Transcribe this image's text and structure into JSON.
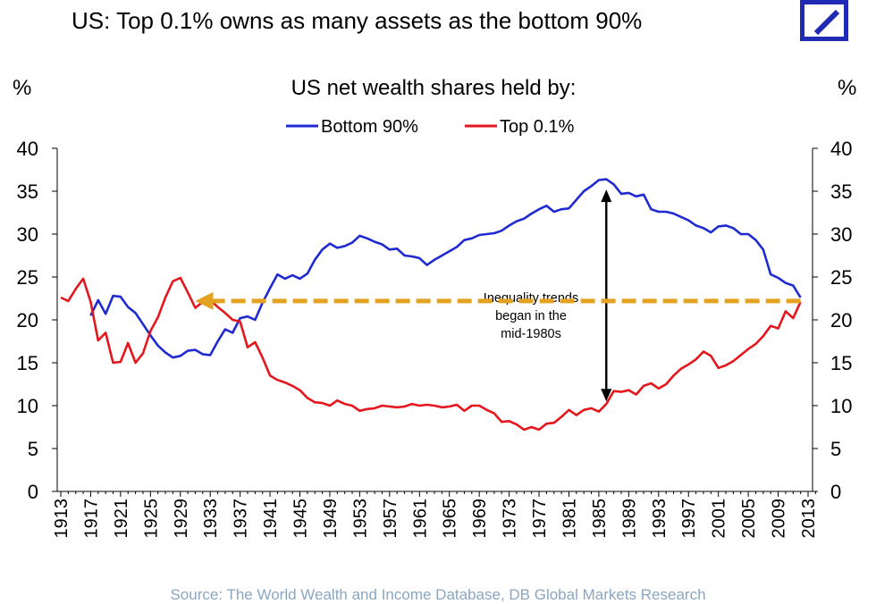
{
  "headline": "US: Top 0.1% owns as many assets as the bottom 90%",
  "logo_icon": "deutsche-bank-logo-icon",
  "source": "Source: The World Wealth and Income Database, DB Global Markets Research",
  "chart_data": {
    "type": "line",
    "title": "US net wealth shares held by:",
    "ylabel_left": "%",
    "ylabel_right": "%",
    "ylim": [
      0,
      40
    ],
    "yticks": [
      0,
      5,
      10,
      15,
      20,
      25,
      30,
      35,
      40
    ],
    "xlim": [
      1913,
      2014
    ],
    "xticks": [
      "1913",
      "1917",
      "1921",
      "1925",
      "1929",
      "1933",
      "1937",
      "1941",
      "1945",
      "1949",
      "1953",
      "1957",
      "1961",
      "1965",
      "1969",
      "1973",
      "1977",
      "1981",
      "1985",
      "1989",
      "1993",
      "1997",
      "2001",
      "2005",
      "2009",
      "2013"
    ],
    "legend_position": "top-center",
    "grid": false,
    "series": [
      {
        "name": "Bottom 90%",
        "color": "#1f2bd0",
        "x": [
          1917,
          1918,
          1919,
          1920,
          1921,
          1922,
          1923,
          1924,
          1925,
          1926,
          1927,
          1928,
          1929,
          1930,
          1931,
          1932,
          1933,
          1934,
          1935,
          1936,
          1937,
          1938,
          1939,
          1940,
          1941,
          1942,
          1943,
          1944,
          1945,
          1946,
          1947,
          1948,
          1949,
          1950,
          1951,
          1952,
          1953,
          1954,
          1955,
          1956,
          1957,
          1958,
          1959,
          1960,
          1961,
          1962,
          1963,
          1964,
          1965,
          1966,
          1967,
          1968,
          1969,
          1970,
          1971,
          1972,
          1973,
          1974,
          1975,
          1976,
          1977,
          1978,
          1979,
          1980,
          1981,
          1982,
          1983,
          1984,
          1985,
          1986,
          1987,
          1988,
          1989,
          1990,
          1991,
          1992,
          1993,
          1994,
          1995,
          1996,
          1997,
          1998,
          1999,
          2000,
          2001,
          2002,
          2003,
          2004,
          2005,
          2006,
          2007,
          2008,
          2009,
          2010,
          2011,
          2012
        ],
        "values": [
          20.5,
          22.3,
          20.7,
          22.8,
          22.7,
          21.5,
          20.8,
          19.5,
          18.2,
          17.0,
          16.2,
          15.6,
          15.8,
          16.4,
          16.5,
          16.0,
          15.9,
          17.5,
          18.9,
          18.5,
          20.2,
          20.4,
          20.0,
          22.0,
          23.7,
          25.3,
          24.8,
          25.2,
          24.8,
          25.4,
          27.0,
          28.2,
          28.9,
          28.4,
          28.6,
          29.0,
          29.8,
          29.5,
          29.1,
          28.8,
          28.2,
          28.3,
          27.5,
          27.4,
          27.2,
          26.4,
          27.0,
          27.5,
          28.0,
          28.5,
          29.3,
          29.5,
          29.9,
          30.0,
          30.1,
          30.4,
          31.0,
          31.5,
          31.8,
          32.4,
          32.9,
          33.3,
          32.6,
          32.9,
          33.0,
          34.0,
          35.0,
          35.6,
          36.3,
          36.4,
          35.8,
          34.7,
          34.8,
          34.4,
          34.6,
          32.9,
          32.6,
          32.6,
          32.4,
          32.0,
          31.6,
          31.0,
          30.7,
          30.2,
          30.9,
          31.0,
          30.7,
          30.0,
          30.0,
          29.3,
          28.2,
          25.3,
          24.9,
          24.3,
          24.0,
          22.6
        ]
      },
      {
        "name": "Top 0.1%",
        "color": "#e3171d",
        "x": [
          1913,
          1914,
          1915,
          1916,
          1917,
          1918,
          1919,
          1920,
          1921,
          1922,
          1923,
          1924,
          1925,
          1926,
          1927,
          1928,
          1929,
          1930,
          1931,
          1932,
          1933,
          1934,
          1935,
          1936,
          1937,
          1938,
          1939,
          1940,
          1941,
          1942,
          1943,
          1944,
          1945,
          1946,
          1947,
          1948,
          1949,
          1950,
          1951,
          1952,
          1953,
          1954,
          1955,
          1956,
          1957,
          1958,
          1959,
          1960,
          1961,
          1962,
          1963,
          1964,
          1965,
          1966,
          1967,
          1968,
          1969,
          1970,
          1971,
          1972,
          1973,
          1974,
          1975,
          1976,
          1977,
          1978,
          1979,
          1980,
          1981,
          1982,
          1983,
          1984,
          1985,
          1986,
          1987,
          1988,
          1989,
          1990,
          1991,
          1992,
          1993,
          1994,
          1995,
          1996,
          1997,
          1998,
          1999,
          2000,
          2001,
          2002,
          2003,
          2004,
          2005,
          2006,
          2007,
          2008,
          2009,
          2010,
          2011,
          2012
        ],
        "values": [
          22.6,
          22.2,
          23.6,
          24.8,
          22.1,
          17.6,
          18.5,
          15.0,
          15.1,
          17.3,
          15.0,
          16.1,
          18.7,
          20.3,
          22.6,
          24.5,
          24.9,
          23.2,
          21.4,
          22.1,
          22.3,
          21.5,
          20.8,
          20.0,
          19.8,
          16.8,
          17.4,
          15.6,
          13.5,
          13.0,
          12.7,
          12.3,
          11.8,
          10.9,
          10.4,
          10.3,
          10.0,
          10.6,
          10.2,
          10.0,
          9.4,
          9.6,
          9.7,
          10.0,
          9.9,
          9.8,
          9.9,
          10.2,
          10.0,
          10.1,
          10.0,
          9.8,
          9.9,
          10.1,
          9.4,
          10.0,
          10.0,
          9.5,
          9.1,
          8.1,
          8.2,
          7.8,
          7.2,
          7.5,
          7.2,
          7.9,
          8.0,
          8.7,
          9.5,
          8.9,
          9.5,
          9.7,
          9.3,
          10.2,
          11.7,
          11.6,
          11.8,
          11.3,
          12.3,
          12.6,
          12.0,
          12.5,
          13.5,
          14.3,
          14.8,
          15.4,
          16.3,
          15.8,
          14.4,
          14.7,
          15.2,
          15.9,
          16.6,
          17.2,
          18.1,
          19.3,
          19.0,
          21.0,
          20.2,
          22.1
        ]
      }
    ],
    "annotations": [
      {
        "text_lines": [
          "Inequality trends",
          "began in the",
          "mid-1980s"
        ],
        "x": 1986,
        "y": 20.5
      },
      {
        "type": "double-arrow",
        "x": 1986,
        "y_from": 10.5,
        "y_to": 35.2,
        "color": "#000000"
      },
      {
        "type": "dashed-arrow",
        "y": 22.2,
        "x_from": 2012,
        "x_to": 1931,
        "color": "#e3a221"
      }
    ]
  }
}
